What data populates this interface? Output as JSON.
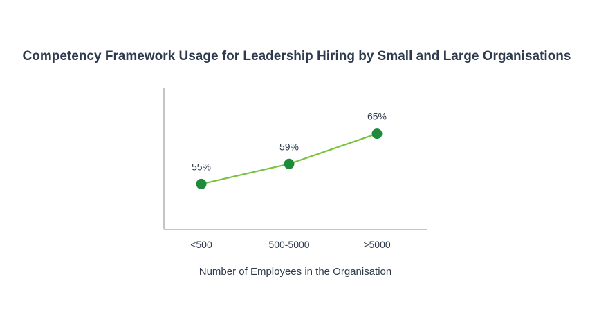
{
  "chart_data": {
    "type": "line",
    "title": "Competency Framework Usage for Leadership Hiring by Small and Large Organisations",
    "xlabel": "Number of Employees in the Organisation",
    "ylabel": "",
    "categories": [
      "<500",
      "500-5000",
      ">5000"
    ],
    "series": [
      {
        "values": [
          55,
          59,
          65
        ],
        "data_labels": [
          "55%",
          "59%",
          "65%"
        ],
        "line_color": "#7cc242",
        "marker_color": "#1e8a3c"
      }
    ],
    "ylim": [
      46,
      74
    ],
    "grid": false,
    "legend": "none"
  }
}
